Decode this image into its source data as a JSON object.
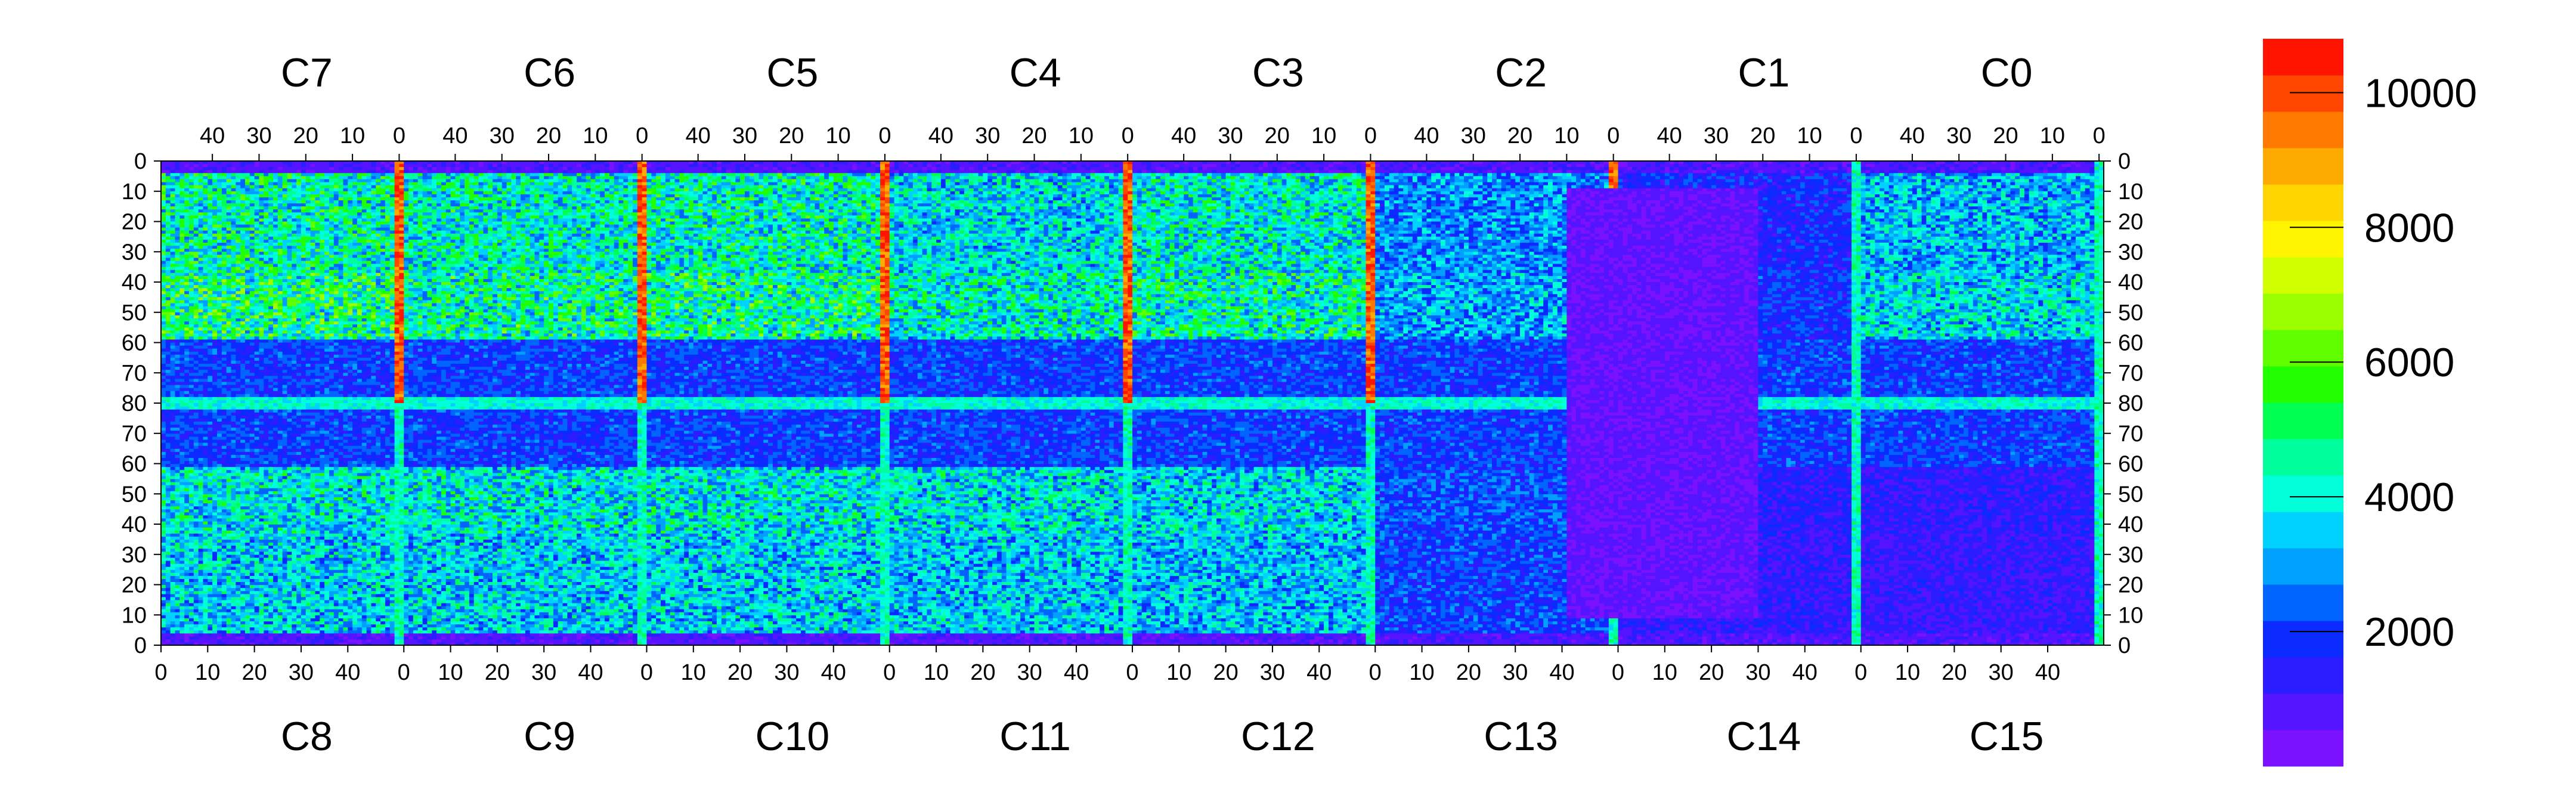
{
  "chart_data": {
    "type": "heatmap",
    "title": "",
    "top_chip_labels": [
      "C7",
      "C6",
      "C5",
      "C4",
      "C3",
      "C2",
      "C1",
      "C0"
    ],
    "bottom_chip_labels": [
      "C8",
      "C9",
      "C10",
      "C11",
      "C12",
      "C13",
      "C14",
      "C15"
    ],
    "top_axis_ticks": [
      "40",
      "30",
      "20",
      "10",
      "0"
    ],
    "bottom_axis_ticks": [
      "0",
      "10",
      "20",
      "30",
      "40"
    ],
    "y_axis_ticks": [
      "0",
      "10",
      "20",
      "30",
      "40",
      "50",
      "60",
      "70",
      "80",
      "70",
      "60",
      "50",
      "40",
      "30",
      "20",
      "10",
      "0"
    ],
    "columns_per_chip": 52,
    "rows_per_half": 80,
    "colorbar": {
      "min": 0,
      "max": 10800,
      "ticks": [
        2000,
        4000,
        6000,
        8000,
        10000
      ],
      "tick_labels": [
        "2000",
        "4000",
        "6000",
        "8000",
        "10000"
      ],
      "colors": [
        "#7a11ff",
        "#5514ff",
        "#2b1dff",
        "#0a2aff",
        "#0064ff",
        "#00a0ff",
        "#00d2ff",
        "#00ffd8",
        "#00ff9c",
        "#00ff50",
        "#22ff00",
        "#5fff00",
        "#9bff00",
        "#d2ff00",
        "#fff500",
        "#ffd400",
        "#ffaa00",
        "#ff7800",
        "#ff4600",
        "#ff1400"
      ]
    },
    "estimated_mean_levels": {
      "C7": 4300,
      "C6": 4100,
      "C5": 4200,
      "C4": 3700,
      "C3": 4000,
      "C2": 2800,
      "C1": 1700,
      "C0": 3300,
      "C8": 3500,
      "C9": 3500,
      "C10": 3500,
      "C11": 3400,
      "C12": 3300,
      "C13": 2000,
      "C14": 1300,
      "C15": 1200
    }
  }
}
